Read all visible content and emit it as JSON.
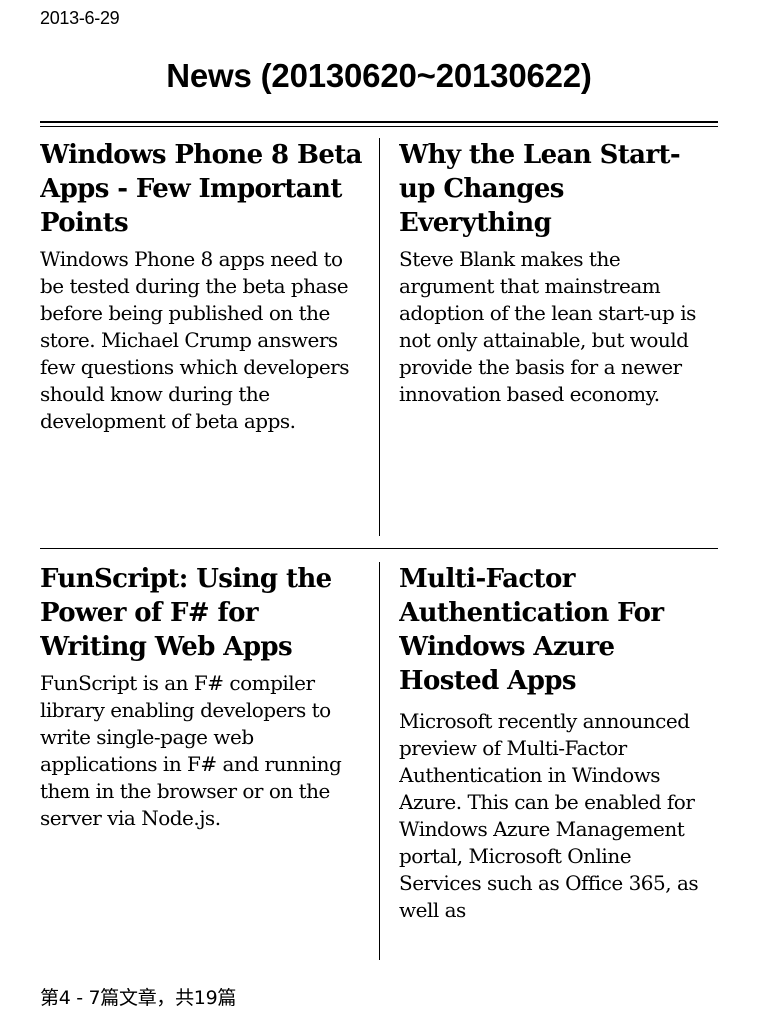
{
  "header": {
    "date": "2013-6-29",
    "title": "News (20130620~20130622)"
  },
  "articles": [
    {
      "title": "Windows Phone 8 Beta Apps - Few Important Points",
      "summary": "Windows Phone 8 apps need to be tested during the beta phase before being published on the store. Michael Crump answers few questions which developers should know during the development of beta apps."
    },
    {
      "title": "Why the Lean Start-up Changes Everything",
      "summary": "Steve Blank makes the argument that mainstream adoption of the lean start-up is not only attainable, but would provide the basis for a newer innovation based economy."
    },
    {
      "title": "FunScript: Using the Power of F# for Writing Web Apps",
      "summary": "FunScript is an F# compiler library enabling developers to write single-page web applications in F# and running them in the browser or on the server via Node.js."
    },
    {
      "title": "Multi-Factor Authentication For Windows Azure Hosted Apps",
      "summary": "Microsoft recently announced preview of Multi-Factor Authentication in Windows Azure. This can be enabled for Windows Azure Management portal, Microsoft Online Services such as Office 365, as well as"
    }
  ],
  "footer": {
    "pagination": "第4 - 7篇文章，共19篇"
  }
}
